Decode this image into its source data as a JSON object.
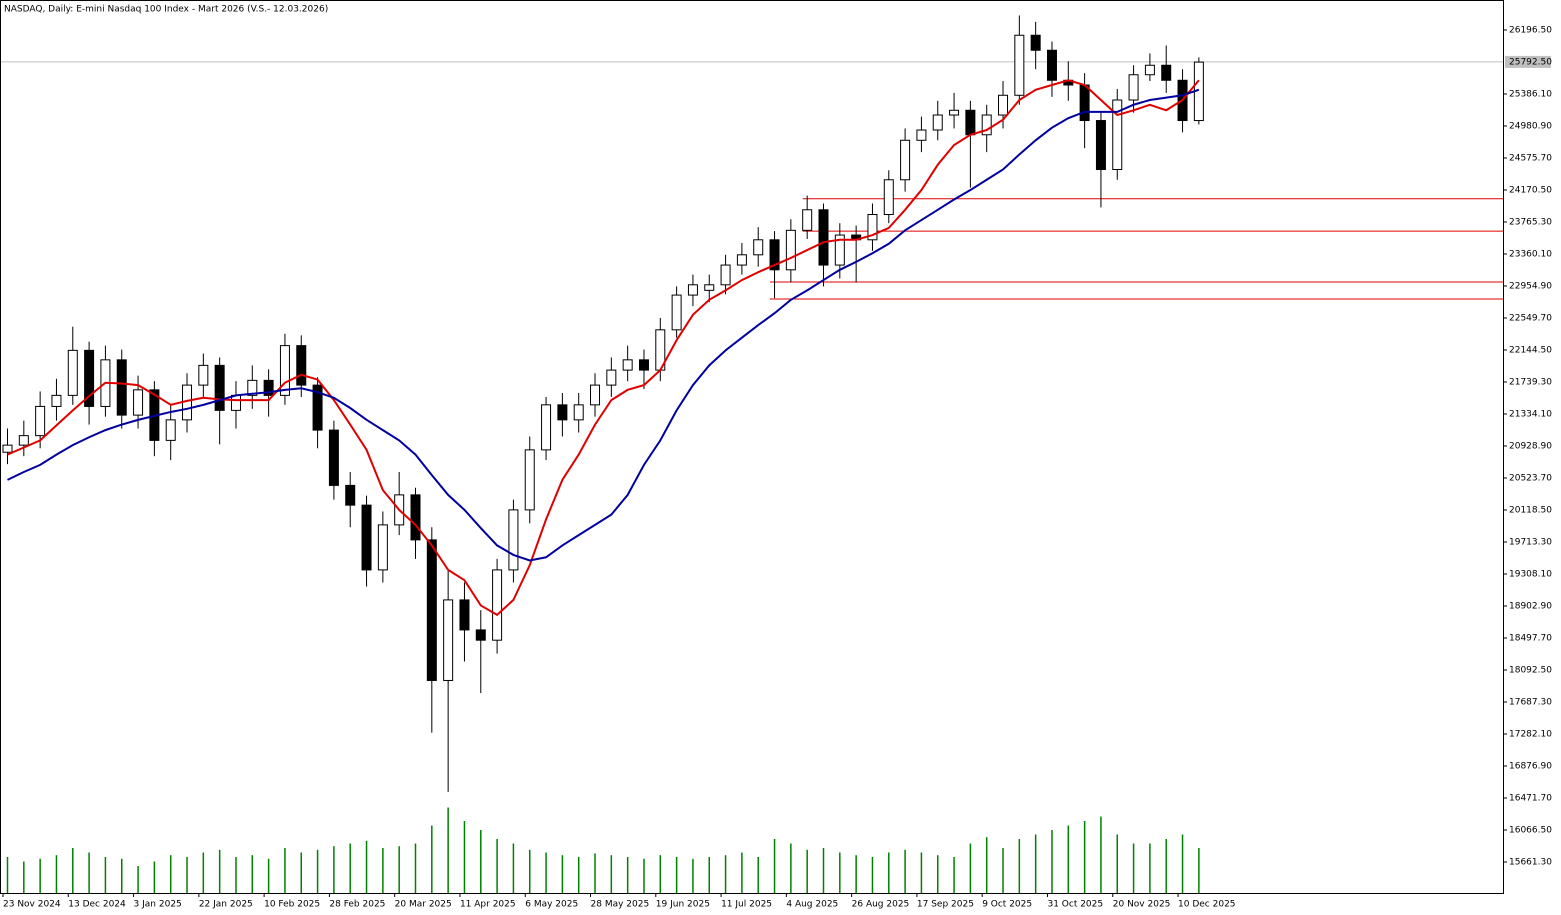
{
  "chart_data": {
    "type": "candlestick",
    "title": "NASDAQ, Daily:  E-mini Nasdaq 100 Index - Mart 2026 (V.S.- 12.03.2026)",
    "categories": [
      "23 Nov 2024",
      null,
      null,
      null,
      "13 Dec 2024",
      null,
      null,
      null,
      "3 Jan 2025",
      null,
      null,
      null,
      "22 Jan 2025",
      null,
      null,
      null,
      "10 Feb 2025",
      null,
      null,
      null,
      "28 Feb 2025",
      null,
      null,
      null,
      "20 Mar 2025",
      null,
      null,
      null,
      "11 Apr 2025",
      null,
      null,
      null,
      "6 May 2025",
      null,
      null,
      null,
      "28 May 2025",
      null,
      null,
      null,
      "19 Jun 2025",
      null,
      null,
      null,
      "11 Jul 2025",
      null,
      null,
      null,
      "4 Aug 2025",
      null,
      null,
      null,
      "26 Aug 2025",
      null,
      null,
      null,
      "17 Sep 2025",
      null,
      null,
      null,
      "9 Oct 2025",
      null,
      null,
      null,
      "31 Oct 2025",
      null,
      null,
      null,
      "20 Nov 2025",
      null,
      null,
      null,
      "10 Dec 2025",
      null
    ],
    "open": [
      20850,
      20940,
      21060,
      21430,
      21570,
      22140,
      21430,
      22020,
      21320,
      21640,
      21000,
      21260,
      21700,
      21950,
      21380,
      21570,
      21760,
      21570,
      22200,
      21700,
      21130,
      20430,
      20180,
      19360,
      19930,
      20310,
      19740,
      17960,
      18980,
      18600,
      18470,
      19360,
      20120,
      20880,
      21450,
      21260,
      21450,
      21700,
      21890,
      22020,
      21890,
      22400,
      22840,
      22900,
      22970,
      23220,
      23350,
      23540,
      23160,
      23660,
      23920,
      23220,
      23600,
      23540,
      23860,
      24300,
      24800,
      24930,
      25120,
      25180,
      24870,
      25120,
      25370,
      26130,
      25940,
      25560,
      25500,
      25050,
      24430,
      25310,
      25630,
      25750,
      25560,
      25050
    ],
    "high": [
      21150,
      21250,
      21620,
      21780,
      22440,
      22250,
      22200,
      22150,
      21820,
      21750,
      21450,
      21850,
      22100,
      22050,
      21750,
      21950,
      21900,
      22350,
      22330,
      21800,
      21250,
      20600,
      20300,
      20100,
      20600,
      20400,
      19900,
      19350,
      19200,
      18850,
      19500,
      20250,
      21050,
      21550,
      21600,
      21600,
      21850,
      22050,
      22200,
      22150,
      22550,
      22950,
      23100,
      23100,
      23350,
      23500,
      23700,
      23650,
      23800,
      24100,
      24000,
      23750,
      23720,
      24000,
      24420,
      24950,
      25100,
      25300,
      25400,
      25300,
      25250,
      25550,
      26380,
      26300,
      26050,
      25800,
      25650,
      25150,
      25450,
      25750,
      25900,
      26000,
      25700,
      25850
    ],
    "low": [
      20700,
      20800,
      20900,
      21250,
      21450,
      21200,
      21300,
      21150,
      21150,
      20800,
      20750,
      21100,
      21550,
      20950,
      21150,
      21400,
      21300,
      21450,
      21550,
      20900,
      20250,
      19900,
      19150,
      19200,
      19800,
      19500,
      17300,
      16550,
      18200,
      17800,
      18300,
      19200,
      19950,
      20750,
      21050,
      21100,
      21300,
      21550,
      21750,
      21650,
      21750,
      22300,
      22700,
      22750,
      22850,
      23100,
      23200,
      22800,
      23000,
      23550,
      22950,
      23050,
      23000,
      23400,
      23750,
      24150,
      24650,
      24800,
      24950,
      24200,
      24650,
      24950,
      25250,
      25700,
      25350,
      25300,
      24700,
      23950,
      24300,
      25150,
      25550,
      25400,
      24900,
      25000
    ],
    "close": [
      20940,
      21060,
      21430,
      21570,
      22140,
      21430,
      22020,
      21320,
      21640,
      21000,
      21260,
      21700,
      21950,
      21380,
      21570,
      21760,
      21570,
      22200,
      21700,
      21130,
      20430,
      20180,
      19360,
      19930,
      20310,
      19740,
      17960,
      18980,
      18600,
      18470,
      19360,
      20120,
      20880,
      21450,
      21260,
      21450,
      21700,
      21890,
      22020,
      21890,
      22400,
      22840,
      22970,
      22970,
      23220,
      23350,
      23540,
      23160,
      23660,
      23920,
      23220,
      23600,
      23540,
      23860,
      24300,
      24800,
      24930,
      25120,
      25180,
      24870,
      25120,
      25370,
      26130,
      25940,
      25560,
      25500,
      25050,
      24430,
      25310,
      25630,
      25750,
      25560,
      25050,
      25790
    ],
    "series": [
      {
        "color": "#e00000",
        "values": [
          20820,
          20910,
          21000,
          21190,
          21380,
          21560,
          21730,
          21720,
          21700,
          21580,
          21450,
          21500,
          21540,
          21520,
          21510,
          21510,
          21510,
          21730,
          21830,
          21770,
          21510,
          21200,
          20880,
          20370,
          20120,
          19930,
          19670,
          19360,
          19230,
          18910,
          18790,
          18980,
          19420,
          20000,
          20500,
          20820,
          21200,
          21510,
          21640,
          21700,
          21890,
          22270,
          22590,
          22780,
          22900,
          23030,
          23130,
          23220,
          23310,
          23410,
          23510,
          23540,
          23540,
          23600,
          23690,
          23920,
          24170,
          24490,
          24740,
          24870,
          24930,
          25060,
          25310,
          25440,
          25500,
          25560,
          25500,
          25310,
          25120,
          25180,
          25250,
          25180,
          25310,
          25560
        ]
      },
      {
        "color": "#0000a0",
        "values": [
          20500,
          20600,
          20690,
          20820,
          20940,
          21040,
          21130,
          21200,
          21260,
          21310,
          21360,
          21400,
          21450,
          21510,
          21570,
          21590,
          21610,
          21640,
          21660,
          21610,
          21540,
          21410,
          21260,
          21130,
          21000,
          20820,
          20560,
          20310,
          20120,
          19890,
          19670,
          19550,
          19480,
          19520,
          19670,
          19800,
          19930,
          20060,
          20310,
          20690,
          21000,
          21380,
          21700,
          21950,
          22140,
          22300,
          22460,
          22610,
          22780,
          22900,
          23030,
          23160,
          23260,
          23370,
          23490,
          23660,
          23790,
          23920,
          24050,
          24170,
          24300,
          24430,
          24620,
          24800,
          24960,
          25080,
          25160,
          25160,
          25160,
          25250,
          25310,
          25340,
          25370,
          25440
        ]
      }
    ],
    "volume": [
      40,
      35,
      38,
      42,
      50,
      45,
      40,
      38,
      30,
      35,
      42,
      40,
      45,
      48,
      40,
      42,
      38,
      50,
      45,
      48,
      52,
      55,
      58,
      50,
      52,
      55,
      75,
      95,
      80,
      70,
      60,
      55,
      48,
      45,
      42,
      40,
      44,
      42,
      40,
      38,
      42,
      40,
      38,
      40,
      42,
      45,
      40,
      60,
      55,
      48,
      50,
      45,
      42,
      40,
      45,
      48,
      45,
      42,
      40,
      55,
      62,
      50,
      60,
      65,
      70,
      75,
      80,
      85,
      65,
      55,
      55,
      60,
      65,
      50
    ],
    "volume_ylim": [
      0,
      100
    ],
    "levels": [
      24060,
      23650,
      23005,
      22790
    ],
    "current_price": {
      "value": 25792.5,
      "label": "25792.50"
    },
    "ylim": [
      15268.8,
      26576.4
    ],
    "yticks": [
      {
        "value": 26196.5,
        "label": "26196.50"
      },
      {
        "value": 25386.1,
        "label": "25386.10"
      },
      {
        "value": 24980.9,
        "label": "24980.90"
      },
      {
        "value": 24575.7,
        "label": "24575.70"
      },
      {
        "value": 24170.5,
        "label": "24170.50"
      },
      {
        "value": 23765.3,
        "label": "23765.30"
      },
      {
        "value": 23360.1,
        "label": "23360.10"
      },
      {
        "value": 22954.9,
        "label": "22954.90"
      },
      {
        "value": 22549.7,
        "label": "22549.70"
      },
      {
        "value": 22144.5,
        "label": "22144.50"
      },
      {
        "value": 21739.3,
        "label": "21739.30"
      },
      {
        "value": 21334.1,
        "label": "21334.10"
      },
      {
        "value": 20928.9,
        "label": "20928.90"
      },
      {
        "value": 20523.7,
        "label": "20523.70"
      },
      {
        "value": 20118.5,
        "label": "20118.50"
      },
      {
        "value": 19713.3,
        "label": "19713.30"
      },
      {
        "value": 19308.1,
        "label": "19308.10"
      },
      {
        "value": 18902.9,
        "label": "18902.90"
      },
      {
        "value": 18497.7,
        "label": "18497.70"
      },
      {
        "value": 18092.5,
        "label": "18092.50"
      },
      {
        "value": 17687.3,
        "label": "17687.30"
      },
      {
        "value": 17282.1,
        "label": "17282.10"
      },
      {
        "value": 16876.9,
        "label": "16876.90"
      },
      {
        "value": 16471.7,
        "label": "16471.70"
      },
      {
        "value": 16066.5,
        "label": "16066.50"
      },
      {
        "value": 15661.3,
        "label": "15661.30"
      }
    ],
    "up_color": "#ffffff",
    "down_color": "#000000",
    "volume_color": "#008000",
    "level_color": "#e00000"
  }
}
